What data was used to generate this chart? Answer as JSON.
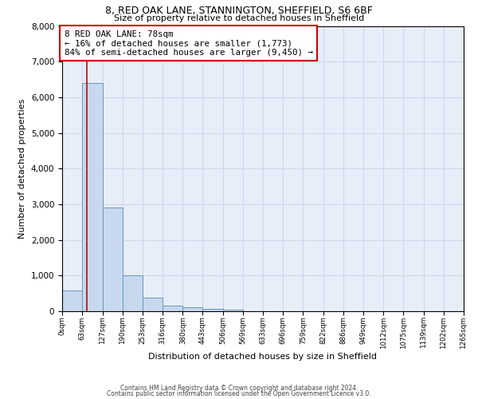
{
  "title1": "8, RED OAK LANE, STANNINGTON, SHEFFIELD, S6 6BF",
  "title2": "Size of property relative to detached houses in Sheffield",
  "xlabel": "Distribution of detached houses by size in Sheffield",
  "ylabel": "Number of detached properties",
  "bar_edges": [
    0,
    63,
    127,
    190,
    253,
    316,
    380,
    443,
    506,
    569,
    633,
    696,
    759,
    822,
    886,
    949,
    1012,
    1075,
    1139,
    1202,
    1265
  ],
  "bar_heights": [
    580,
    6400,
    2900,
    1000,
    380,
    160,
    120,
    70,
    40,
    0,
    0,
    0,
    0,
    0,
    0,
    0,
    0,
    0,
    0,
    0
  ],
  "bar_color": "#c8d8ee",
  "bar_edge_color": "#6699bb",
  "property_size": 78,
  "annotation_line1": "8 RED OAK LANE: 78sqm",
  "annotation_line2": "← 16% of detached houses are smaller (1,773)",
  "annotation_line3": "84% of semi-detached houses are larger (9,450) →",
  "annotation_box_color": "#cc0000",
  "ylim": [
    0,
    8000
  ],
  "xlim": [
    0,
    1265
  ],
  "tick_labels": [
    "0sqm",
    "63sqm",
    "127sqm",
    "190sqm",
    "253sqm",
    "316sqm",
    "380sqm",
    "443sqm",
    "506sqm",
    "569sqm",
    "633sqm",
    "696sqm",
    "759sqm",
    "822sqm",
    "886sqm",
    "949sqm",
    "1012sqm",
    "1075sqm",
    "1139sqm",
    "1202sqm",
    "1265sqm"
  ],
  "tick_positions": [
    0,
    63,
    127,
    190,
    253,
    316,
    380,
    443,
    506,
    569,
    633,
    696,
    759,
    822,
    886,
    949,
    1012,
    1075,
    1139,
    1202,
    1265
  ],
  "grid_color": "#ccd8ee",
  "background_color": "#e8eef8",
  "footer1": "Contains HM Land Registry data © Crown copyright and database right 2024.",
  "footer2": "Contains public sector information licensed under the Open Government Licence v3.0."
}
